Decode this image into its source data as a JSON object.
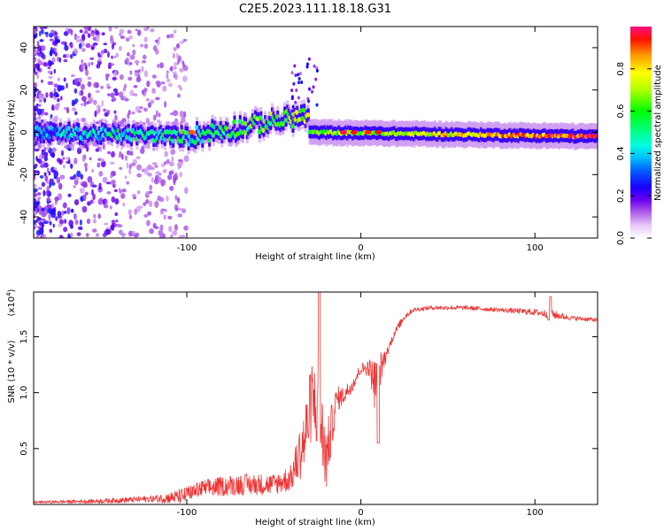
{
  "figure": {
    "title": "C2E5.2023.111.18.18.G31"
  },
  "chart_data": [
    {
      "type": "heatmap",
      "name": "spectrogram",
      "xlabel": "Height of straight line (km)",
      "ylabel": "Frequency (Hz)",
      "xlim": [
        -188,
        136
      ],
      "ylim": [
        -50,
        50
      ],
      "xticks": [
        -100,
        0,
        100
      ],
      "xtick_labels": [
        "-100",
        "0",
        "100"
      ],
      "yticks": [
        -40,
        -20,
        0,
        20,
        40
      ],
      "ytick_labels": [
        "-40",
        "-20",
        "0",
        "20",
        "40"
      ],
      "colorbar": {
        "label": "Normalized spectral amplitude",
        "range": [
          0.0,
          1.0
        ],
        "ticks": [
          0.0,
          0.2,
          0.4,
          0.6,
          0.8
        ],
        "tick_labels": [
          "0.0",
          "0.2",
          "0.4",
          "0.6",
          "0.8"
        ],
        "colors": [
          "#ffffff",
          "#d8a8f0",
          "#a040e0",
          "#5a00f0",
          "#0000ff",
          "#00b0ff",
          "#00ffff",
          "#00ff60",
          "#00ff00",
          "#a0ff00",
          "#ffff00",
          "#ffa000",
          "#ff0000",
          "#ff1080"
        ]
      },
      "ridge": {
        "description_segments": [
          {
            "x": [
              -188,
              -100
            ],
            "freq": [
              0,
              -2
            ],
            "amplitude": [
              0.35,
              0.55
            ]
          },
          {
            "x": [
              -100,
              -30
            ],
            "freq": [
              -2,
              8
            ],
            "amplitude": [
              0.45,
              0.7
            ]
          },
          {
            "x": [
              -30,
              136
            ],
            "freq": [
              0,
              -2
            ],
            "amplitude": [
              0.6,
              0.95
            ]
          }
        ]
      }
    },
    {
      "type": "line",
      "name": "snr",
      "xlabel": "Height of straight line (km)",
      "ylabel": "SNR (10 * v/v)",
      "multiplier_label": "(x10",
      "multiplier_exp": "4",
      "multiplier_close": ")",
      "xlim": [
        -188,
        136
      ],
      "ylim": [
        0,
        1.9
      ],
      "xticks": [
        -100,
        0,
        100
      ],
      "xtick_labels": [
        "-100",
        "0",
        "100"
      ],
      "yticks": [
        0.5,
        1.0,
        1.5
      ],
      "ytick_labels": [
        "0.5",
        "1.0",
        "1.5"
      ],
      "line_color": "#ee3333",
      "envelope": {
        "x": [
          -188,
          -150,
          -120,
          -110,
          -100,
          -90,
          -70,
          -50,
          -40,
          -32,
          -28,
          -24,
          -20,
          -14,
          -10,
          -5,
          0,
          5,
          8,
          10,
          15,
          20,
          25,
          30,
          40,
          60,
          80,
          100,
          110,
          120,
          136
        ],
        "base": [
          0.02,
          0.03,
          0.05,
          0.06,
          0.08,
          0.12,
          0.15,
          0.15,
          0.2,
          0.5,
          0.85,
          0.7,
          0.3,
          0.9,
          0.95,
          1.05,
          1.2,
          1.2,
          1.0,
          1.1,
          1.35,
          1.55,
          1.68,
          1.74,
          1.76,
          1.76,
          1.74,
          1.72,
          1.7,
          1.67,
          1.65
        ],
        "amplitude": [
          0.01,
          0.02,
          0.03,
          0.05,
          0.08,
          0.1,
          0.12,
          0.12,
          0.15,
          0.4,
          0.45,
          0.45,
          0.4,
          0.15,
          0.1,
          0.08,
          0.06,
          0.1,
          0.3,
          0.25,
          0.05,
          0.04,
          0.03,
          0.02,
          0.02,
          0.02,
          0.02,
          0.03,
          0.04,
          0.02,
          0.02
        ]
      },
      "features": [
        {
          "x": 10,
          "y": 0.55,
          "kind": "dip"
        },
        {
          "x": 108,
          "y": 1.65,
          "kind": "dip"
        },
        {
          "x": 109,
          "y": 1.86,
          "kind": "spike"
        },
        {
          "x": -24,
          "y": 1.9,
          "kind": "spike"
        }
      ]
    }
  ]
}
